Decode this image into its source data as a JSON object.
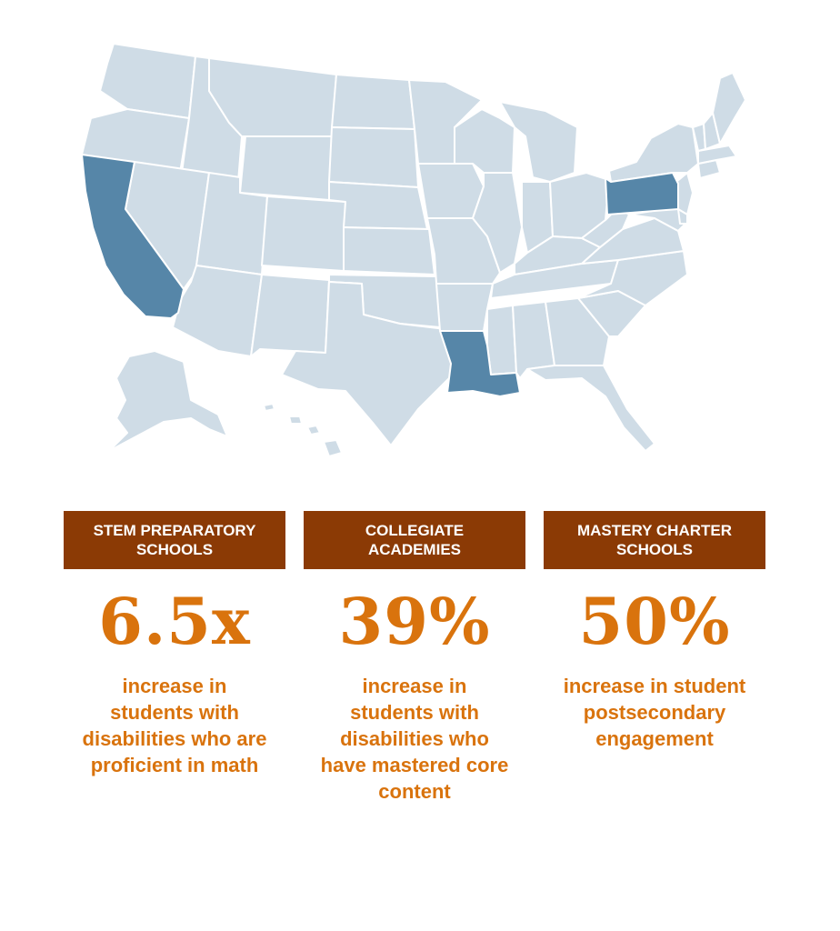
{
  "colors": {
    "header_bg": "#8b3a05",
    "accent_text": "#d9730d",
    "state_default": "#cfdce6",
    "state_highlight": "#5686a8",
    "state_border": "#ffffff"
  },
  "map": {
    "highlighted_states": [
      "California",
      "Pennsylvania",
      "Louisiana"
    ]
  },
  "stats": [
    {
      "header": [
        "STEM PREPARATORY",
        "SCHOOLS"
      ],
      "value": "6.5x",
      "description": "increase in students with disabilities who are proficient in math"
    },
    {
      "header": [
        "COLLEGIATE",
        "ACADEMIES"
      ],
      "value": "39%",
      "description": "increase in students with disabilities who have mastered core content"
    },
    {
      "header": [
        "MASTERY CHARTER",
        "SCHOOLS"
      ],
      "value": "50%",
      "description": "increase in student postsecondary engagement"
    }
  ]
}
